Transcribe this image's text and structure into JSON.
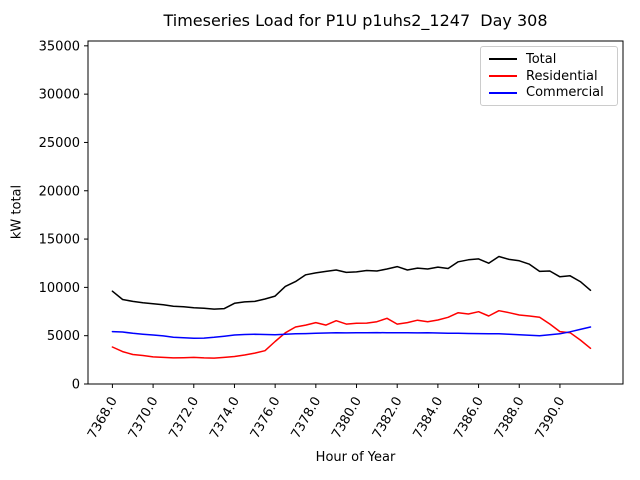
{
  "figure": {
    "title": "Timeseries Load for P1U p1uhs2_1247  Day 308",
    "xlabel": "Hour of Year",
    "ylabel": "kW total"
  },
  "legend": {
    "entries": [
      {
        "label": "Total",
        "color": "#000000"
      },
      {
        "label": "Residential",
        "color": "#ff0000"
      },
      {
        "label": "Commercial",
        "color": "#0000ff"
      }
    ]
  },
  "chart_data": {
    "type": "line",
    "title": "Timeseries Load for P1U p1uhs2_1247  Day 308",
    "xlabel": "Hour of Year",
    "ylabel": "kW total",
    "xlim": [
      7366.8,
      7393.1
    ],
    "ylim": [
      0,
      35500
    ],
    "grid": false,
    "legend_position": "upper right",
    "x_ticks": [
      "7368.0",
      "7370.0",
      "7372.0",
      "7374.0",
      "7376.0",
      "7378.0",
      "7380.0",
      "7382.0",
      "7384.0",
      "7386.0",
      "7388.0",
      "7390.0"
    ],
    "x_tick_values": [
      7368,
      7370,
      7372,
      7374,
      7376,
      7378,
      7380,
      7382,
      7384,
      7386,
      7388,
      7390
    ],
    "y_ticks": [
      "0",
      "5000",
      "10000",
      "15000",
      "20000",
      "25000",
      "30000",
      "35000"
    ],
    "y_tick_values": [
      0,
      5000,
      10000,
      15000,
      20000,
      25000,
      30000,
      35000
    ],
    "x_start": 7368.0,
    "x_step": 0.5,
    "series": [
      {
        "name": "Total",
        "color": "#000000",
        "values": [
          9600,
          8750,
          8550,
          8400,
          8300,
          8200,
          8050,
          8000,
          7900,
          7850,
          7750,
          7800,
          8350,
          8500,
          8550,
          8800,
          9100,
          10100,
          10600,
          11300,
          11500,
          11650,
          11800,
          11550,
          11600,
          11750,
          11700,
          11900,
          12150,
          11800,
          12000,
          11900,
          12100,
          11950,
          12650,
          12850,
          12950,
          12500,
          13200,
          12900,
          12750,
          12400,
          11650,
          11700,
          11100,
          11200,
          10600,
          9700
        ]
      },
      {
        "name": "Residential",
        "color": "#ff0000",
        "values": [
          3830,
          3350,
          3050,
          2950,
          2800,
          2750,
          2700,
          2720,
          2750,
          2700,
          2680,
          2750,
          2850,
          3000,
          3200,
          3450,
          4400,
          5300,
          5900,
          6100,
          6350,
          6100,
          6550,
          6200,
          6280,
          6300,
          6450,
          6800,
          6200,
          6350,
          6600,
          6450,
          6620,
          6900,
          7380,
          7250,
          7480,
          7040,
          7590,
          7380,
          7140,
          7040,
          6900,
          6210,
          5420,
          5310,
          4550,
          3690
        ]
      },
      {
        "name": "Commercial",
        "color": "#0000ff",
        "values": [
          5420,
          5380,
          5250,
          5150,
          5070,
          4980,
          4830,
          4780,
          4730,
          4750,
          4830,
          4950,
          5070,
          5120,
          5140,
          5120,
          5100,
          5150,
          5200,
          5220,
          5250,
          5280,
          5300,
          5290,
          5300,
          5310,
          5320,
          5300,
          5310,
          5300,
          5290,
          5310,
          5280,
          5260,
          5250,
          5230,
          5220,
          5210,
          5200,
          5150,
          5100,
          5050,
          5000,
          5100,
          5200,
          5400,
          5650,
          5900
        ]
      }
    ]
  }
}
